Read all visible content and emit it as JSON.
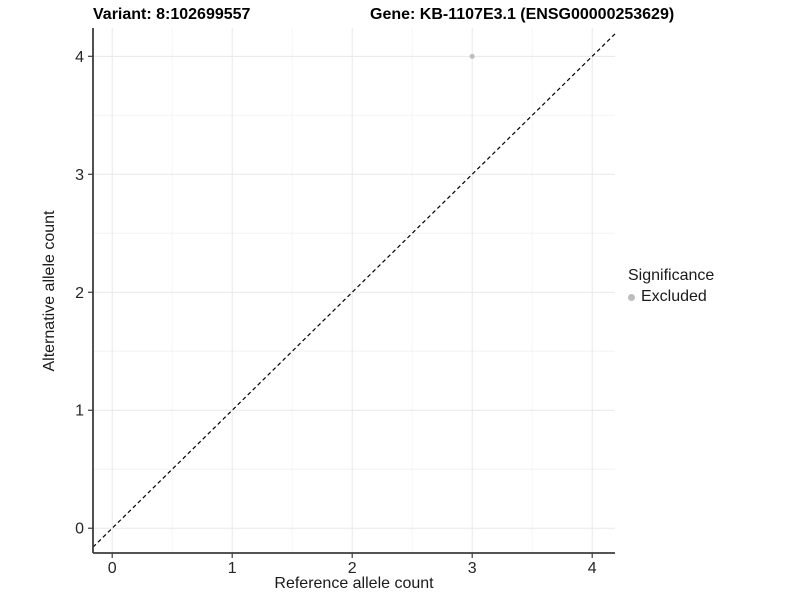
{
  "titles": {
    "variant": "Variant: 8:102699557",
    "gene": "Gene: KB-1107E3.1 (ENSG00000253629)"
  },
  "axes": {
    "x_label": "Reference allele count",
    "y_label": "Alternative allele count"
  },
  "legend": {
    "title": "Significance",
    "items": [
      {
        "label": "Excluded",
        "color": "#bdbdbd"
      }
    ]
  },
  "chart_data": {
    "type": "scatter",
    "title_left": "Variant: 8:102699557",
    "title_right": "Gene: KB-1107E3.1 (ENSG00000253629)",
    "xlabel": "Reference allele count",
    "ylabel": "Alternative allele count",
    "points": [
      {
        "x": 3,
        "y": 4,
        "series": "Excluded"
      }
    ],
    "series": [
      {
        "name": "Excluded",
        "color": "#bdbdbd"
      }
    ],
    "xlim": [
      -0.16,
      4.19
    ],
    "ylim": [
      -0.21,
      4.24
    ],
    "x_ticks": [
      0,
      1,
      2,
      3,
      4
    ],
    "y_ticks": [
      0,
      1,
      2,
      3,
      4
    ],
    "x_minor": [
      0.5,
      1.5,
      2.5,
      3.5
    ],
    "y_minor": [
      0.5,
      1.5,
      2.5,
      3.5
    ],
    "grid": "major+minor",
    "legend_position": "right",
    "legend_title": "Significance",
    "legend_entries": [
      "Excluded"
    ],
    "reference_line": {
      "type": "identity",
      "slope": 1,
      "intercept": 0,
      "style": "dashed",
      "color": "#000000"
    },
    "point_size": 2.5,
    "colors": {
      "grid_major": "#e8e8e8",
      "grid_minor": "#f4f4f4",
      "axis": "#3c3c3c",
      "tick_label": "#262626",
      "background": "#ffffff"
    }
  }
}
